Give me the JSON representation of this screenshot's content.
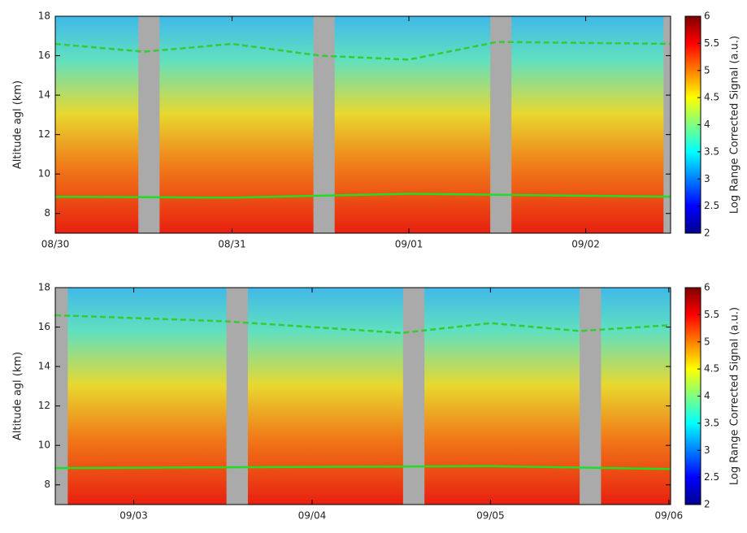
{
  "chart_data": [
    {
      "type": "heatmap",
      "ylabel": "Altitude agl (km)",
      "xlim": [
        0,
        3.48
      ],
      "xticks": [
        {
          "value": 0,
          "label": "08/30"
        },
        {
          "value": 1,
          "label": "08/31"
        },
        {
          "value": 2,
          "label": "09/01"
        },
        {
          "value": 3,
          "label": "09/02"
        }
      ],
      "ylim": [
        7,
        18
      ],
      "yticks": [
        8,
        10,
        12,
        14,
        16,
        18
      ],
      "no_data_intervals": [
        [
          0.47,
          0.59
        ],
        [
          1.46,
          1.58
        ],
        [
          2.46,
          2.58
        ],
        [
          3.44,
          3.48
        ]
      ],
      "series": [
        {
          "color": "#33cc33",
          "dashed": true,
          "x": [
            0,
            0.5,
            1.0,
            1.5,
            2.0,
            2.5,
            3.48
          ],
          "values": [
            16.6,
            16.2,
            16.6,
            16.0,
            15.8,
            16.7,
            16.6
          ]
        },
        {
          "color": "#22dd22",
          "dashed": false,
          "x": [
            0,
            1.0,
            2.0,
            3.48
          ],
          "values": [
            8.85,
            8.8,
            9.0,
            8.85
          ]
        }
      ],
      "colorbar": {
        "label": "Log Range Corrected Signal (a.u.)",
        "lim": [
          2,
          6
        ],
        "ticks": [
          2,
          2.5,
          3,
          3.5,
          4,
          4.5,
          5,
          5.5,
          6
        ]
      }
    },
    {
      "type": "heatmap",
      "ylabel": "Altitude agl (km)",
      "xlim": [
        3.56,
        7.01
      ],
      "xticks": [
        {
          "value": 4,
          "label": "09/03"
        },
        {
          "value": 5,
          "label": "09/04"
        },
        {
          "value": 6,
          "label": "09/05"
        },
        {
          "value": 7,
          "label": "09/06"
        }
      ],
      "ylim": [
        7,
        18
      ],
      "yticks": [
        8,
        10,
        12,
        14,
        16,
        18
      ],
      "no_data_intervals": [
        [
          3.56,
          3.63
        ],
        [
          4.52,
          4.64
        ],
        [
          5.51,
          5.63
        ],
        [
          6.5,
          6.62
        ]
      ],
      "series": [
        {
          "color": "#33cc33",
          "dashed": true,
          "x": [
            3.56,
            4.5,
            5.5,
            6.0,
            6.5,
            7.01
          ],
          "values": [
            16.6,
            16.3,
            15.7,
            16.2,
            15.8,
            16.1
          ]
        },
        {
          "color": "#22dd22",
          "dashed": false,
          "x": [
            3.56,
            6.0,
            7.01
          ],
          "values": [
            8.85,
            8.95,
            8.8
          ]
        }
      ],
      "colorbar": {
        "label": "Log Range Corrected Signal (a.u.)",
        "lim": [
          2,
          6
        ],
        "ticks": [
          2,
          2.5,
          3,
          3.5,
          4,
          4.5,
          5,
          5.5,
          6
        ]
      }
    }
  ]
}
